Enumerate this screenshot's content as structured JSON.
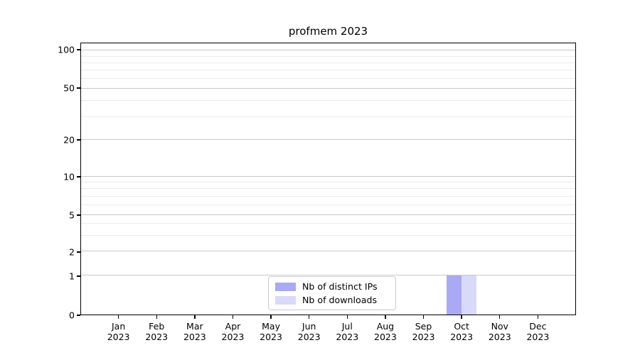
{
  "chart_data": {
    "type": "bar",
    "title": "profmem 2023",
    "categories": [
      "Jan 2023",
      "Feb 2023",
      "Mar 2023",
      "Apr 2023",
      "May 2023",
      "Jun 2023",
      "Jul 2023",
      "Aug 2023",
      "Sep 2023",
      "Oct 2023",
      "Nov 2023",
      "Dec 2023"
    ],
    "series": [
      {
        "name": "Nb of distinct IPs",
        "color": "#a9a9f5",
        "values": [
          0,
          0,
          0,
          0,
          0,
          0,
          0,
          0,
          0,
          1,
          0,
          0
        ]
      },
      {
        "name": "Nb of downloads",
        "color": "#d9d9f9",
        "values": [
          0,
          0,
          0,
          0,
          0,
          0,
          0,
          0,
          0,
          1,
          0,
          0
        ]
      }
    ],
    "xlabel": "",
    "ylabel": "",
    "y_axis": {
      "scale": "symlog",
      "ticks": [
        0,
        1,
        2,
        5,
        10,
        20,
        50,
        100
      ],
      "ylim": [
        0,
        114
      ]
    },
    "grid": {
      "major": true,
      "minor": true
    },
    "legend": {
      "position": "lower center",
      "entries": [
        "Nb of distinct IPs",
        "Nb of downloads"
      ]
    }
  }
}
